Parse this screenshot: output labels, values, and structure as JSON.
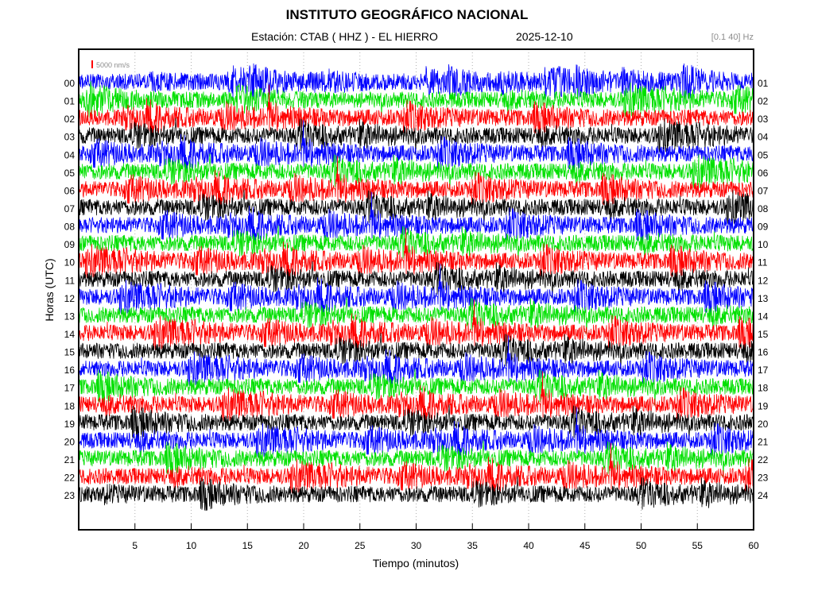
{
  "header": {
    "title": "INSTITUTO GEOGRÁFICO NACIONAL",
    "station": "Estación:  CTAB ( HHZ ) - EL HIERRO",
    "date": "2025-12-10",
    "filter": "[0.1 40] Hz"
  },
  "scale_label": "5000 nm/s",
  "chart_data": {
    "type": "line",
    "xlabel": "Tiempo (minutos)",
    "ylabel": "Horas (UTC)",
    "xlim": [
      0,
      60
    ],
    "x_ticks": [
      "5",
      "10",
      "15",
      "20",
      "25",
      "30",
      "35",
      "40",
      "45",
      "50",
      "55",
      "60"
    ],
    "x_tick_values": [
      5,
      10,
      15,
      20,
      25,
      30,
      35,
      40,
      45,
      50,
      55,
      60
    ],
    "left_hour_labels": [
      "00",
      "01",
      "02",
      "03",
      "04",
      "05",
      "06",
      "07",
      "08",
      "09",
      "10",
      "11",
      "12",
      "13",
      "14",
      "15",
      "16",
      "17",
      "18",
      "19",
      "20",
      "21",
      "22",
      "23"
    ],
    "right_hour_labels": [
      "01",
      "02",
      "03",
      "04",
      "05",
      "06",
      "07",
      "08",
      "09",
      "10",
      "11",
      "12",
      "13",
      "14",
      "15",
      "16",
      "17",
      "18",
      "19",
      "20",
      "21",
      "22",
      "23",
      "24"
    ],
    "trace_color_cycle": [
      "#0000ff",
      "#00e000",
      "#ff0000",
      "#000000"
    ],
    "grid": true,
    "grid_style": "dotted"
  }
}
